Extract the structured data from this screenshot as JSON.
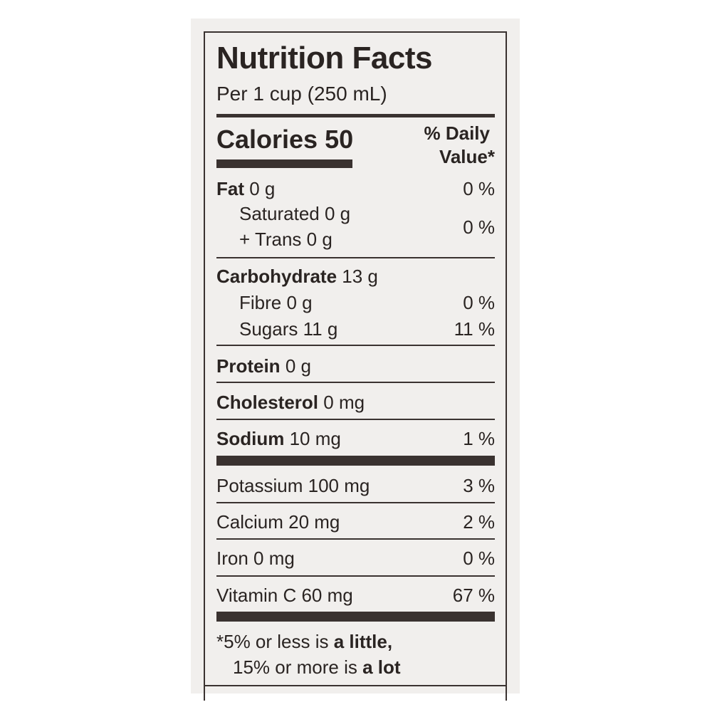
{
  "label": {
    "title": "Nutrition Facts",
    "serving": "Per 1 cup (250 mL)",
    "calories_label": "Calories 50",
    "dv_header_line1": "% Daily",
    "dv_header_line2": "Value*",
    "fat": {
      "name": "Fat",
      "amount": "0 g",
      "dv": "0 %"
    },
    "saturated": {
      "text": "Saturated 0 g"
    },
    "trans": {
      "text": "+ Trans 0 g"
    },
    "sat_trans_dv": "0 %",
    "carbohydrate": {
      "name": "Carbohydrate",
      "amount": "13 g"
    },
    "fibre": {
      "text": "Fibre 0 g",
      "dv": "0 %"
    },
    "sugars": {
      "text": "Sugars 11 g",
      "dv": "11 %"
    },
    "protein": {
      "name": "Protein",
      "amount": "0 g"
    },
    "cholesterol": {
      "name": "Cholesterol",
      "amount": "0 mg"
    },
    "sodium": {
      "name": "Sodium",
      "amount": "10 mg",
      "dv": "1 %"
    },
    "potassium": {
      "text": "Potassium 100 mg",
      "dv": "3 %"
    },
    "calcium": {
      "text": "Calcium 20 mg",
      "dv": "2 %"
    },
    "iron": {
      "text": "Iron 0 mg",
      "dv": "0 %"
    },
    "vitamin_c": {
      "text": "Vitamin C 60 mg",
      "dv": "67 %"
    },
    "footnote": {
      "line1_prefix": "*5% or less is ",
      "line1_bold": "a little",
      "line1_suffix": ",",
      "line2_prefix": "15% or more is ",
      "line2_bold": "a lot"
    }
  },
  "colors": {
    "ink": "#2a2422",
    "panel": "#f1efed",
    "rule": "#3a3230"
  }
}
